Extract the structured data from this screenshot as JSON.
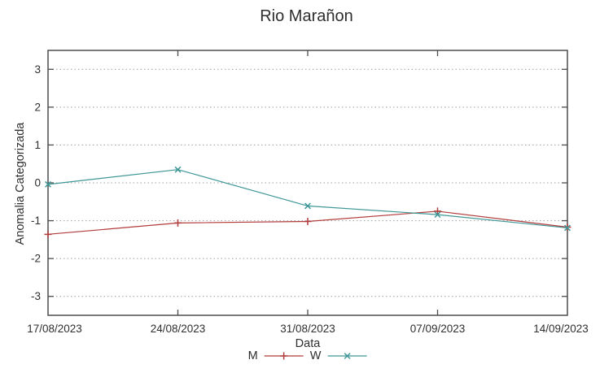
{
  "chart_data": {
    "type": "line",
    "title": "Rio Marañon",
    "xlabel": "Data",
    "ylabel": "Anomalia Categorizada",
    "categories": [
      "17/08/2023",
      "24/08/2023",
      "31/08/2023",
      "07/09/2023",
      "14/09/2023"
    ],
    "series": [
      {
        "name": "M",
        "color": "#b23b3b",
        "marker": "plus",
        "values": [
          -1.36,
          -1.06,
          -1.02,
          -0.75,
          -1.17
        ]
      },
      {
        "name": "W",
        "color": "#3e9696",
        "marker": "cross",
        "values": [
          -0.04,
          0.35,
          -0.61,
          -0.84,
          -1.19
        ]
      }
    ],
    "ylim": [
      -3.5,
      3.5
    ],
    "yticks": [
      -3,
      -2,
      -1,
      0,
      1,
      2,
      3
    ],
    "grid": "horizontal-dotted",
    "legend_position": "below-center"
  },
  "colors": {
    "border": "#4d4d4d",
    "grid": "#9e9e9e",
    "text": "#2e2e2e",
    "background": "#ffffff"
  }
}
